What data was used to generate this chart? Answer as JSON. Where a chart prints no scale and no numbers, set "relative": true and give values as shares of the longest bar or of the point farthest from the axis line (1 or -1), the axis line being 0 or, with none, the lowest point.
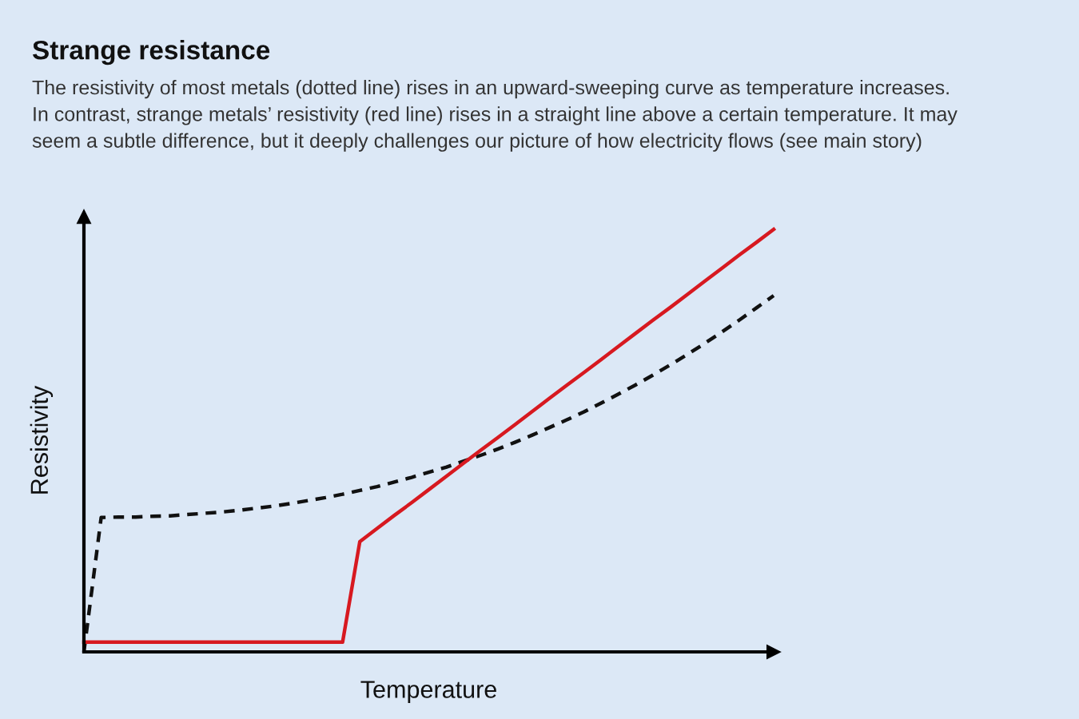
{
  "chart_data": {
    "type": "line",
    "title": "Strange resistance",
    "subtitle": "The resistivity of most metals (dotted line) rises in an upward-sweeping curve as temperature increases.\nIn contrast, strange metals’ resistivity (red line) rises in a straight line above a certain temperature. It may\nseem a subtle difference, but it deeply challenges our picture of how electricity flows (see main story)",
    "xlabel": "Temperature",
    "ylabel": "Resistivity",
    "relative": true,
    "categories": [
      null,
      null,
      null,
      null,
      null,
      null,
      null,
      null,
      null,
      null,
      null,
      null,
      null,
      null,
      null,
      null,
      null,
      null,
      null,
      null,
      null,
      null,
      null,
      null,
      null,
      null,
      null,
      null,
      null,
      null,
      null,
      null,
      null,
      null,
      null,
      null,
      null,
      null,
      null,
      null,
      null
    ],
    "series": [
      {
        "color": "#111111",
        "line_style": "dashed",
        "values": [
          0,
          0.318,
          0.319,
          0.319,
          0.321,
          0.322,
          0.325,
          0.328,
          0.331,
          0.335,
          0.34,
          0.345,
          0.351,
          0.358,
          0.365,
          0.373,
          0.382,
          0.391,
          0.402,
          0.413,
          0.425,
          0.437,
          0.451,
          0.465,
          0.48,
          0.496,
          0.513,
          0.531,
          0.549,
          0.568,
          0.589,
          0.61,
          0.632,
          0.655,
          0.679,
          0.704,
          0.73,
          0.757,
          0.785,
          0.814,
          0.843
        ]
      },
      {
        "color": "#d71920",
        "line_style": "solid",
        "values": [
          0.023,
          0.023,
          0.023,
          0.023,
          0.023,
          0.023,
          0.023,
          0.023,
          0.023,
          0.023,
          0.023,
          0.023,
          0.023,
          0.023,
          0.023,
          0.023,
          0.261,
          0.292,
          0.323,
          0.353,
          0.384,
          0.415,
          0.446,
          0.477,
          0.507,
          0.538,
          0.569,
          0.6,
          0.631,
          0.661,
          0.692,
          0.723,
          0.754,
          0.785,
          0.815,
          0.846,
          0.877,
          0.908,
          0.939,
          0.969,
          1.0
        ]
      }
    ]
  }
}
